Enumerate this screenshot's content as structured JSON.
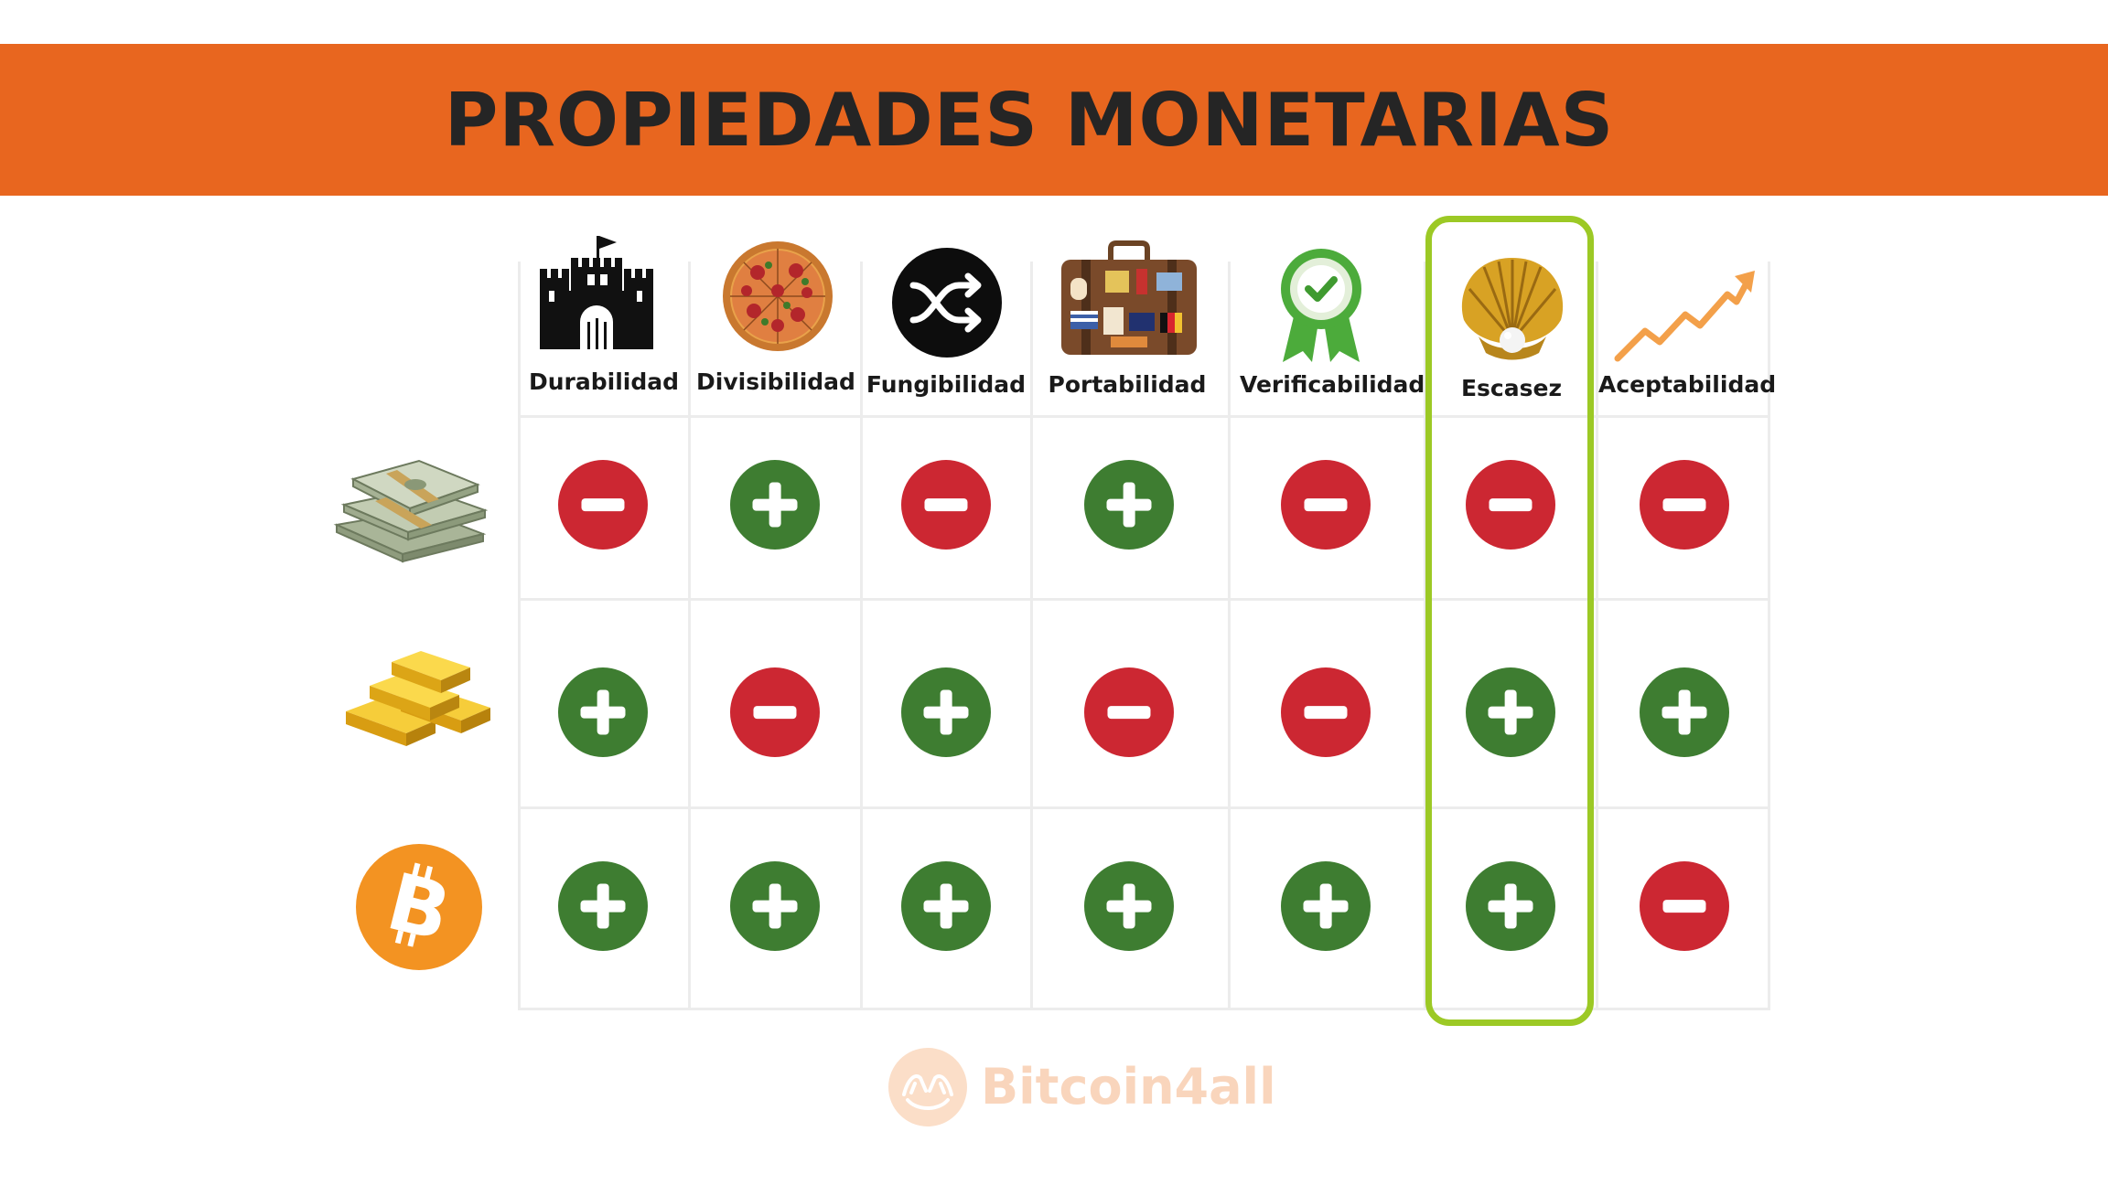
{
  "title": "PROPIEDADES MONETARIAS",
  "columns": [
    {
      "label": "Durabilidad",
      "icon": "castle-icon"
    },
    {
      "label": "Divisibilidad",
      "icon": "pizza-icon"
    },
    {
      "label": "Fungibilidad",
      "icon": "shuffle-icon"
    },
    {
      "label": "Portabilidad",
      "icon": "suitcase-icon"
    },
    {
      "label": "Verificabilidad",
      "icon": "verified-badge-icon"
    },
    {
      "label": "Escasez",
      "icon": "pearl-shell-icon"
    },
    {
      "label": "Aceptabilidad",
      "icon": "trend-arrow-icon"
    }
  ],
  "rows": [
    {
      "name": "cash",
      "icon": "cash-stack-icon",
      "values": [
        "-",
        "+",
        "-",
        "+",
        "-",
        "-",
        "-"
      ]
    },
    {
      "name": "gold",
      "icon": "gold-bars-icon",
      "values": [
        "+",
        "-",
        "+",
        "-",
        "-",
        "+",
        "+"
      ]
    },
    {
      "name": "bitcoin",
      "icon": "bitcoin-icon",
      "values": [
        "+",
        "+",
        "+",
        "+",
        "+",
        "+",
        "-"
      ]
    }
  ],
  "highlighted_column": "Escasez",
  "watermark": "Bitcoin4all",
  "colors": {
    "banner": "#e8661f",
    "title": "#252525",
    "plus": "#3e7d31",
    "minus": "#cc2732",
    "highlight": "#9cc925",
    "bitcoin": "#f39322"
  }
}
